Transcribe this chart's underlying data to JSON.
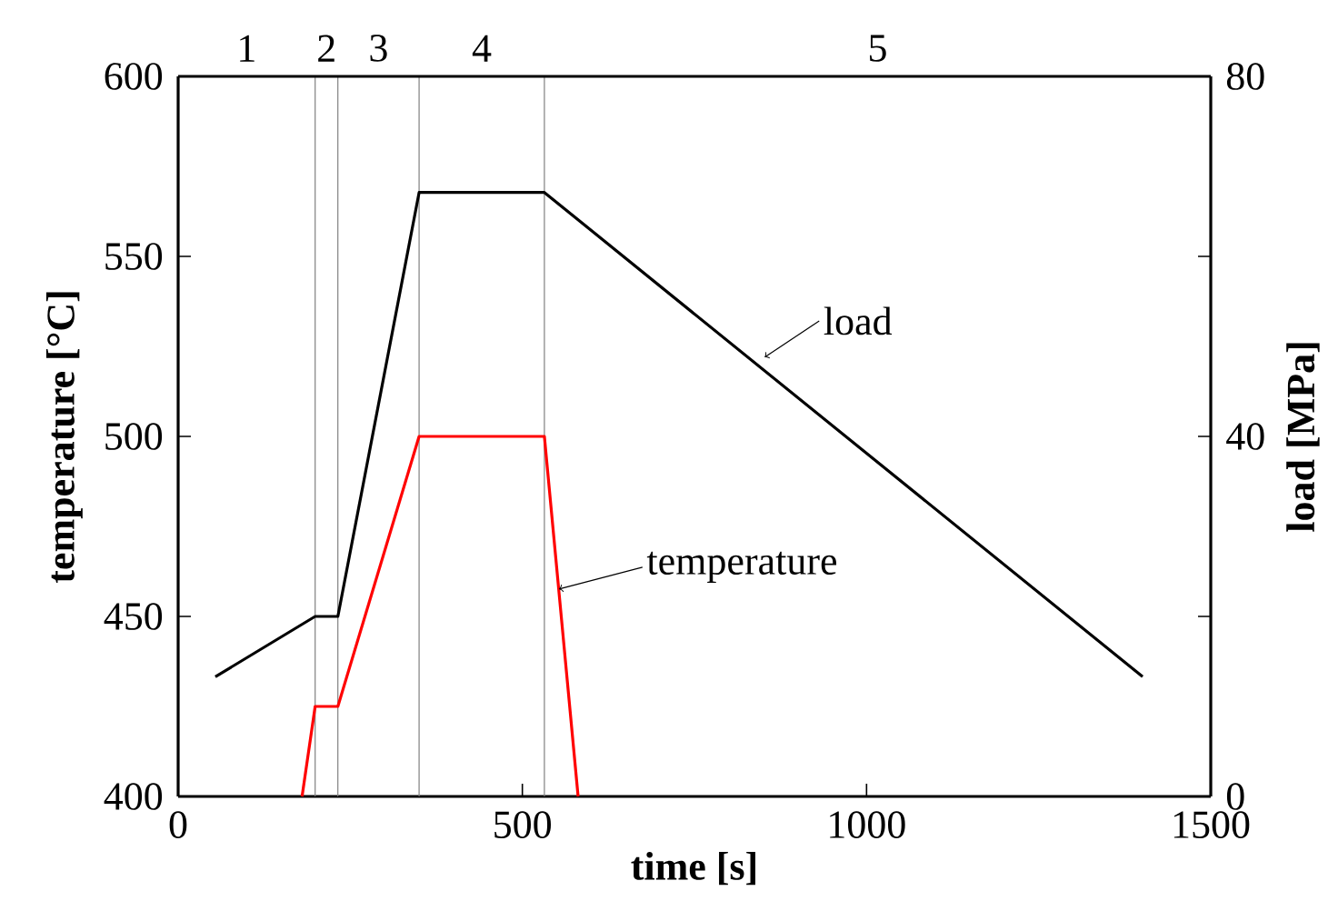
{
  "chart_data": {
    "type": "line",
    "xlabel": "time [s]",
    "ylabel": "temperature [°C]",
    "y2label": "load [MPa]",
    "series": [
      {
        "color": "#000000",
        "axis": "y2",
        "x": [
          54,
          199,
          232,
          350,
          532,
          1401
        ],
        "values": [
          13.3,
          20,
          20,
          67.1,
          67.1,
          13.3
        ]
      },
      {
        "color": "#ff0000",
        "x": [
          180,
          199,
          232,
          350,
          532,
          581
        ],
        "values": [
          400,
          425,
          425,
          500,
          500,
          400
        ]
      }
    ],
    "xlim": [
      0,
      1500
    ],
    "xticks": [
      0,
      500,
      1000,
      1500
    ],
    "ylim": [
      400,
      600
    ],
    "yticks": [
      400,
      450,
      500,
      550,
      600
    ],
    "y2lim": [
      0,
      80
    ],
    "y2ticks": [
      0,
      {
        "value": 20,
        "label": null
      },
      40,
      {
        "value": 60,
        "label": null
      },
      80
    ],
    "ref_lines": [
      {
        "axis": "x",
        "value": 199,
        "color": "#808080"
      },
      {
        "axis": "x",
        "value": 232,
        "color": "#808080"
      },
      {
        "axis": "x",
        "value": 350,
        "color": "#808080"
      },
      {
        "axis": "x",
        "value": 532,
        "color": "#808080"
      }
    ],
    "annotations": [
      "1",
      "2",
      "3",
      "4",
      "5",
      {
        "text": "load",
        "x": 852,
        "y": 522
      },
      {
        "text": "temperature",
        "x": 553,
        "y": 457.6
      }
    ],
    "grid": false,
    "marker": "none",
    "line_style": "solid"
  }
}
